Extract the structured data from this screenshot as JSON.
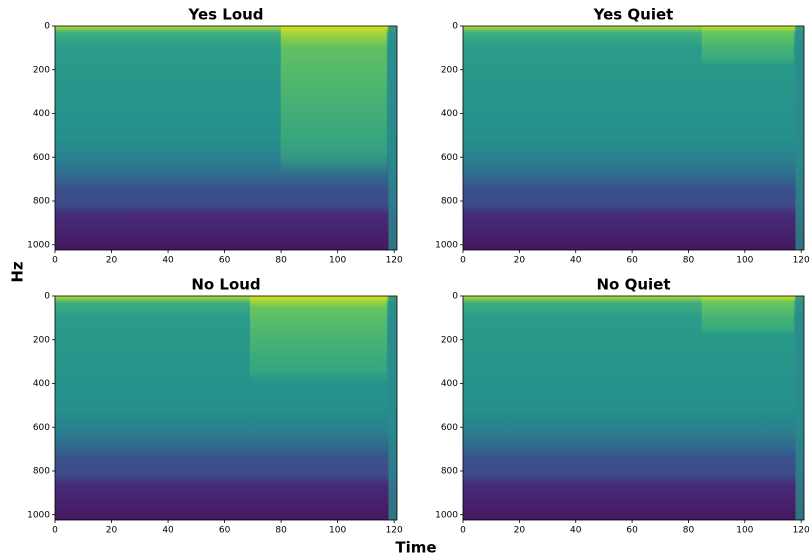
{
  "figure": {
    "x_label": "Time",
    "y_label": "Hz"
  },
  "chart_data": [
    {
      "type": "spectrogram",
      "title": "Yes Loud",
      "xlim": [
        0,
        121
      ],
      "ylim": [
        1024,
        0
      ],
      "xticks": [
        0,
        20,
        40,
        60,
        80,
        100,
        120
      ],
      "yticks": [
        0,
        200,
        400,
        600,
        800,
        1000
      ]
    },
    {
      "type": "spectrogram",
      "title": "Yes Quiet",
      "xlim": [
        0,
        121
      ],
      "ylim": [
        1024,
        0
      ],
      "xticks": [
        0,
        20,
        40,
        60,
        80,
        100,
        120
      ],
      "yticks": [
        0,
        200,
        400,
        600,
        800,
        1000
      ]
    },
    {
      "type": "spectrogram",
      "title": "No Loud",
      "xlim": [
        0,
        121
      ],
      "ylim": [
        1024,
        0
      ],
      "xticks": [
        0,
        20,
        40,
        60,
        80,
        100,
        120
      ],
      "yticks": [
        0,
        200,
        400,
        600,
        800,
        1000
      ]
    },
    {
      "type": "spectrogram",
      "title": "No Quiet",
      "xlim": [
        0,
        121
      ],
      "ylim": [
        1024,
        0
      ],
      "xticks": [
        0,
        20,
        40,
        60,
        80,
        100,
        120
      ],
      "yticks": [
        0,
        200,
        400,
        600,
        800,
        1000
      ]
    }
  ]
}
